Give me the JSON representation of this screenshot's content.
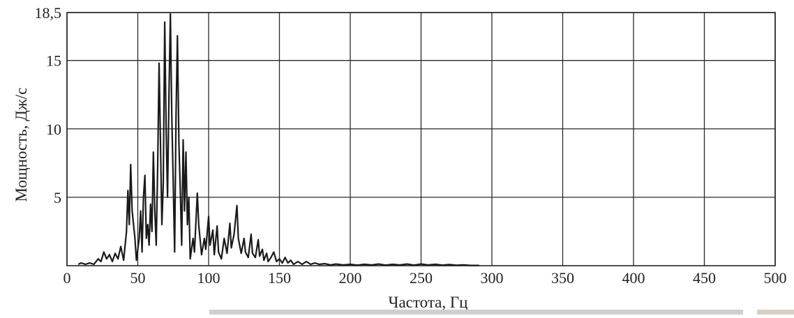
{
  "chart_data": {
    "type": "line",
    "xlabel": "Частота, Гц",
    "ylabel": "Мощность, Дж/с",
    "xlim": [
      0,
      500
    ],
    "ylim": [
      0,
      18.5
    ],
    "x_ticks": [
      "0",
      "50",
      "100",
      "150",
      "200",
      "250",
      "300",
      "350",
      "400",
      "450",
      "500"
    ],
    "y_ticks": [
      {
        "value": 5,
        "label": "5"
      },
      {
        "value": 10,
        "label": "10"
      },
      {
        "value": 15,
        "label": "15"
      },
      {
        "value": 18.5,
        "label": "18,5"
      }
    ],
    "grid": true,
    "series": [
      {
        "color": "#1a1a1a",
        "points": [
          [
            8,
            0.1
          ],
          [
            10,
            0.2
          ],
          [
            13,
            0.1
          ],
          [
            16,
            0.2
          ],
          [
            19,
            0.1
          ],
          [
            22,
            0.5
          ],
          [
            24,
            0.3
          ],
          [
            26,
            1.0
          ],
          [
            28,
            0.5
          ],
          [
            30,
            0.8
          ],
          [
            32,
            0.3
          ],
          [
            34,
            0.9
          ],
          [
            36,
            0.5
          ],
          [
            38,
            1.4
          ],
          [
            40,
            0.4
          ],
          [
            42,
            2.5
          ],
          [
            43,
            5.5
          ],
          [
            44,
            3.0
          ],
          [
            45,
            7.4
          ],
          [
            46,
            4.0
          ],
          [
            48,
            2.0
          ],
          [
            49,
            0.4
          ],
          [
            51,
            2.0
          ],
          [
            52,
            4.0
          ],
          [
            53,
            1.0
          ],
          [
            54,
            5.0
          ],
          [
            55,
            6.6
          ],
          [
            56,
            2.0
          ],
          [
            57,
            3.0
          ],
          [
            58,
            1.5
          ],
          [
            59,
            4.5
          ],
          [
            60,
            2.5
          ],
          [
            61,
            8.3
          ],
          [
            62,
            4.0
          ],
          [
            63,
            1.5
          ],
          [
            64,
            7.0
          ],
          [
            65,
            14.8
          ],
          [
            66,
            9.0
          ],
          [
            67,
            3.0
          ],
          [
            68,
            6.0
          ],
          [
            69,
            17.8
          ],
          [
            70,
            10.0
          ],
          [
            71,
            5.0
          ],
          [
            72,
            12.5
          ],
          [
            73,
            18.4
          ],
          [
            74,
            11.0
          ],
          [
            75,
            6.0
          ],
          [
            76,
            1.0
          ],
          [
            77,
            11.0
          ],
          [
            78,
            16.8
          ],
          [
            79,
            9.0
          ],
          [
            80,
            5.5
          ],
          [
            81,
            1.5
          ],
          [
            82,
            9.2
          ],
          [
            83,
            4.0
          ],
          [
            84,
            8.3
          ],
          [
            85,
            3.0
          ],
          [
            86,
            5.0
          ],
          [
            87,
            0.5
          ],
          [
            89,
            2.0
          ],
          [
            90,
            1.0
          ],
          [
            92,
            5.3
          ],
          [
            93,
            3.0
          ],
          [
            95,
            0.8
          ],
          [
            97,
            2.0
          ],
          [
            98,
            1.2
          ],
          [
            100,
            3.6
          ],
          [
            101,
            1.5
          ],
          [
            103,
            2.6
          ],
          [
            104,
            0.8
          ],
          [
            106,
            2.9
          ],
          [
            107,
            1.0
          ],
          [
            109,
            0.5
          ],
          [
            111,
            2.0
          ],
          [
            113,
            0.9
          ],
          [
            115,
            3.1
          ],
          [
            116,
            1.3
          ],
          [
            118,
            2.3
          ],
          [
            120,
            4.4
          ],
          [
            121,
            2.0
          ],
          [
            123,
            0.9
          ],
          [
            125,
            2.0
          ],
          [
            126,
            1.0
          ],
          [
            128,
            0.6
          ],
          [
            130,
            2.3
          ],
          [
            131,
            0.9
          ],
          [
            133,
            0.6
          ],
          [
            135,
            1.9
          ],
          [
            136,
            0.7
          ],
          [
            138,
            1.2
          ],
          [
            139,
            0.4
          ],
          [
            141,
            0.9
          ],
          [
            142,
            0.3
          ],
          [
            144,
            0.6
          ],
          [
            146,
            1.0
          ],
          [
            148,
            0.3
          ],
          [
            150,
            0.5
          ],
          [
            152,
            0.2
          ],
          [
            154,
            0.6
          ],
          [
            156,
            0.2
          ],
          [
            158,
            0.4
          ],
          [
            160,
            0.1
          ],
          [
            163,
            0.3
          ],
          [
            166,
            0.1
          ],
          [
            169,
            0.3
          ],
          [
            172,
            0.1
          ],
          [
            175,
            0.2
          ],
          [
            178,
            0.1
          ],
          [
            182,
            0.15
          ],
          [
            186,
            0.05
          ],
          [
            190,
            0.12
          ],
          [
            195,
            0.05
          ],
          [
            200,
            0.1
          ],
          [
            205,
            0.04
          ],
          [
            210,
            0.1
          ],
          [
            215,
            0.05
          ],
          [
            220,
            0.12
          ],
          [
            225,
            0.04
          ],
          [
            230,
            0.1
          ],
          [
            235,
            0.05
          ],
          [
            240,
            0.12
          ],
          [
            245,
            0.04
          ],
          [
            250,
            0.12
          ],
          [
            255,
            0.05
          ],
          [
            260,
            0.1
          ],
          [
            265,
            0.04
          ],
          [
            270,
            0.08
          ],
          [
            275,
            0.03
          ],
          [
            280,
            0.06
          ],
          [
            285,
            0.02
          ],
          [
            291,
            0.02
          ]
        ]
      }
    ]
  }
}
